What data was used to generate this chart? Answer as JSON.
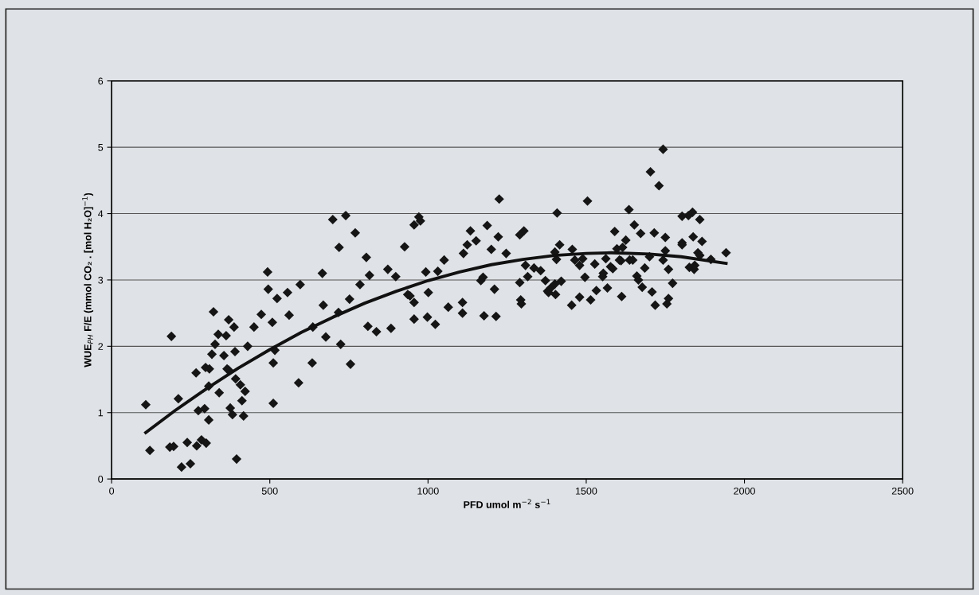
{
  "chart_data": {
    "type": "scatter",
    "xlabel": "PFD umol m$^{−2}$ s$^{−1}$",
    "ylabel": "WUE$_{PH}$ F/E (mmol CO₂ . [mol H₂O]$^{−1}$)",
    "xlim": [
      0,
      2500
    ],
    "xticks": [
      0,
      500,
      1000,
      1500,
      2000,
      2500
    ],
    "ylim": [
      0,
      6
    ],
    "yticks": [
      0,
      1,
      2,
      3,
      4,
      5,
      6
    ],
    "grid": "y",
    "legend": false,
    "series": [
      {
        "color": "#151515",
        "marker": "diamond",
        "x": [
          108,
          121,
          189,
          211,
          184,
          196,
          221,
          239,
          249,
          267,
          269,
          274,
          284,
          294,
          299,
          297,
          309,
          307,
          307,
          317,
          322,
          327,
          337,
          340,
          355,
          362,
          365,
          370,
          370,
          375,
          382,
          387,
          390,
          392,
          395,
          407,
          412,
          417,
          422,
          430,
          450,
          473,
          495,
          508,
          516,
          511,
          511,
          523,
          556,
          561,
          591,
          634,
          636,
          669,
          677,
          717,
          724,
          752,
          755,
          810,
          493,
          596,
          666,
          699,
          719,
          740,
          770,
          785,
          805,
          815,
          837,
          873,
          883,
          898,
          926,
          936,
          943,
          956,
          956,
          956,
          971,
          976,
          993,
          1001,
          998,
          1023,
          1031,
          1051,
          1064,
          1109,
          1109,
          1112,
          1124,
          1134,
          1152,
          1167,
          1174,
          1187,
          1200,
          1210,
          1177,
          1215,
          1222,
          1225,
          1247,
          1290,
          1303,
          1290,
          1293,
          1295,
          1308,
          1315,
          1335,
          1356,
          1371,
          1378,
          1388,
          1401,
          1403,
          1421,
          1381,
          1408,
          1416,
          1401,
          1406,
          1454,
          1456,
          1464,
          1479,
          1489,
          1479,
          1496,
          1504,
          1514,
          1527,
          1532,
          1552,
          1554,
          1562,
          1567,
          1577,
          1584,
          1590,
          1597,
          1615,
          1605,
          1610,
          1612,
          1625,
          1635,
          1637,
          1647,
          1652,
          1660,
          1665,
          1672,
          1677,
          1685,
          1700,
          1708,
          1715,
          1718,
          1730,
          1743,
          1750,
          1750,
          1755,
          1760,
          1760,
          1773,
          1803,
          1823,
          1836,
          1859,
          1803,
          1803,
          1838,
          1866,
          1853,
          1859,
          1826,
          1841,
          1843,
          1894,
          1942,
          1743,
          1703
        ],
        "values": [
          1.12,
          0.43,
          2.15,
          1.21,
          0.48,
          0.49,
          0.18,
          0.55,
          0.23,
          1.6,
          0.5,
          1.03,
          0.59,
          1.06,
          0.54,
          1.68,
          1.66,
          0.89,
          1.4,
          1.88,
          2.52,
          2.03,
          2.18,
          1.3,
          1.86,
          2.16,
          1.66,
          1.64,
          2.4,
          1.07,
          0.97,
          2.29,
          1.92,
          1.51,
          0.3,
          1.42,
          1.18,
          0.95,
          1.32,
          2.0,
          2.29,
          2.48,
          2.86,
          2.36,
          1.94,
          1.75,
          1.14,
          2.72,
          2.81,
          2.47,
          1.45,
          1.75,
          2.29,
          2.62,
          2.14,
          2.51,
          2.03,
          2.71,
          1.73,
          2.3,
          3.12,
          2.93,
          3.1,
          3.91,
          3.49,
          3.97,
          3.71,
          2.93,
          3.34,
          3.07,
          2.22,
          3.16,
          2.27,
          3.05,
          3.5,
          2.78,
          2.76,
          2.66,
          2.41,
          3.83,
          3.95,
          3.89,
          3.12,
          2.81,
          2.44,
          2.33,
          3.13,
          3.3,
          2.59,
          2.66,
          2.5,
          3.4,
          3.53,
          3.74,
          3.59,
          2.99,
          3.04,
          3.82,
          3.46,
          2.86,
          2.46,
          2.45,
          3.65,
          4.22,
          3.4,
          3.68,
          3.74,
          2.96,
          2.7,
          2.64,
          3.22,
          3.05,
          3.18,
          3.14,
          2.99,
          2.83,
          2.88,
          2.94,
          2.78,
          2.98,
          2.81,
          4.01,
          3.53,
          3.42,
          3.31,
          2.62,
          3.46,
          3.3,
          3.22,
          3.32,
          2.74,
          3.04,
          4.19,
          2.7,
          3.24,
          2.84,
          3.05,
          3.1,
          3.32,
          2.88,
          3.2,
          3.17,
          3.73,
          3.47,
          3.49,
          3.3,
          3.29,
          2.75,
          3.6,
          4.06,
          3.3,
          3.3,
          3.83,
          3.06,
          3.0,
          3.7,
          2.89,
          3.18,
          3.35,
          2.82,
          3.71,
          2.62,
          4.42,
          3.3,
          3.64,
          3.44,
          2.64,
          2.72,
          3.16,
          2.95,
          3.96,
          3.97,
          4.02,
          3.91,
          3.56,
          3.53,
          3.65,
          3.58,
          3.41,
          3.37,
          3.19,
          3.16,
          3.22,
          3.31,
          3.41,
          4.97,
          4.63
        ]
      },
      {
        "type": "line",
        "color": "#111111",
        "line_style": "solid",
        "marker": "none",
        "x": [
          108,
          200,
          300,
          400,
          500,
          600,
          700,
          800,
          900,
          1000,
          1100,
          1200,
          1300,
          1400,
          1500,
          1580,
          1700,
          1800,
          1942
        ],
        "values": [
          0.7,
          1.03,
          1.36,
          1.67,
          1.95,
          2.21,
          2.44,
          2.65,
          2.83,
          2.99,
          3.12,
          3.23,
          3.31,
          3.37,
          3.4,
          3.41,
          3.39,
          3.35,
          3.25
        ]
      }
    ]
  }
}
